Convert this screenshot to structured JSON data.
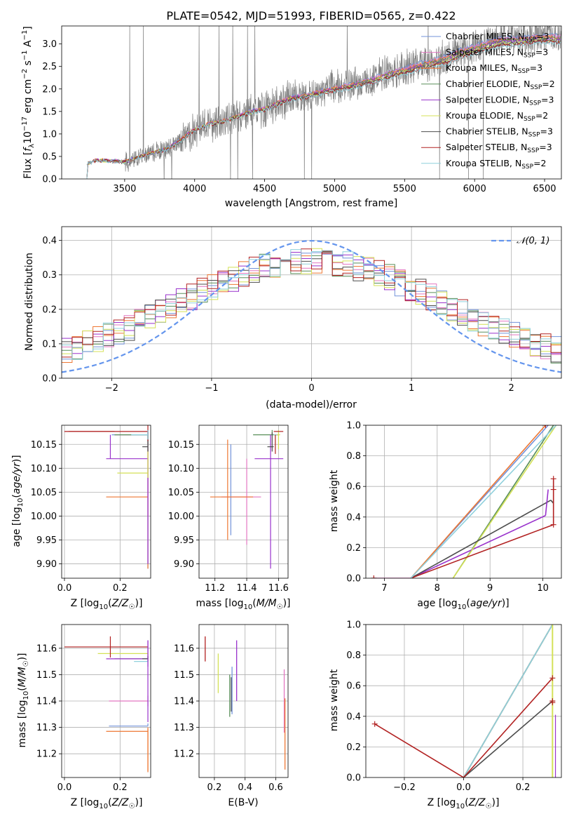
{
  "figure": {
    "title": "PLATE=0542, MJD=51993, FIBERID=0565, z=0.422"
  },
  "colors": {
    "data": "#808080",
    "normal": "#6495ed"
  },
  "models": [
    {
      "name": "Chabrier MILES, N_SSP=3",
      "base": "Chabrier MILES, N",
      "nssp": "3",
      "color": "#7393d9"
    },
    {
      "name": "Salpeter MILES, N_SSP=3",
      "base": "Salpeter MILES, N",
      "nssp": "3",
      "color": "#e377c2"
    },
    {
      "name": "Kroupa MILES, N_SSP=3",
      "base": "Kroupa MILES, N",
      "nssp": "3",
      "color": "#ee7733"
    },
    {
      "name": "Chabrier ELODIE, N_SSP=2",
      "base": "Chabrier ELODIE, N",
      "nssp": "2",
      "color": "#5a8f5a"
    },
    {
      "name": "Salpeter ELODIE, N_SSP=3",
      "base": "Salpeter ELODIE, N",
      "nssp": "3",
      "color": "#9932cc"
    },
    {
      "name": "Kroupa ELODIE, N_SSP=2",
      "base": "Kroupa ELODIE, N",
      "nssp": "2",
      "color": "#d4e157"
    },
    {
      "name": "Chabrier STELIB, N_SSP=3",
      "base": "Chabrier STELIB, N",
      "nssp": "3",
      "color": "#4d4d4d"
    },
    {
      "name": "Salpeter STELIB, N_SSP=3",
      "base": "Salpeter STELIB, N",
      "nssp": "3",
      "color": "#b22222"
    },
    {
      "name": "Kroupa STELIB, N_SSP=2",
      "base": "Kroupa STELIB, N",
      "nssp": "2",
      "color": "#8fd0dc"
    }
  ],
  "chart_data": [
    {
      "id": "spectrum",
      "type": "line",
      "title": "PLATE=0542, MJD=51993, FIBERID=0565, z=0.422",
      "xlabel": "wavelength [Angstrom, rest frame]",
      "ylabel": "Flux [f_λ 10^-17 erg cm^-2 s^-1 A^-1]",
      "xlim": [
        3050,
        6620
      ],
      "ylim": [
        0,
        3.4
      ],
      "xticks": [
        3500,
        4000,
        4500,
        5000,
        5500,
        6000,
        6500
      ],
      "yticks": [
        0.0,
        0.5,
        1.0,
        1.5,
        2.0,
        2.5,
        3.0
      ],
      "grid": false,
      "legend": "top-right",
      "x": [
        3230,
        3300,
        3400,
        3500,
        3600,
        3700,
        3800,
        3900,
        4000,
        4100,
        4200,
        4300,
        4400,
        4500,
        4600,
        4700,
        4800,
        4900,
        5000,
        5100,
        5200,
        5300,
        5400,
        5500,
        5600,
        5700,
        5800,
        5900,
        6000,
        6100,
        6200,
        6300,
        6400,
        6450
      ],
      "series": [
        {
          "name": "data",
          "values": [
            0.33,
            0.42,
            0.4,
            0.38,
            0.48,
            0.58,
            0.65,
            0.85,
            1.1,
            1.22,
            1.28,
            1.38,
            1.5,
            1.55,
            1.7,
            1.82,
            1.85,
            1.95,
            2.02,
            2.08,
            2.15,
            2.25,
            2.38,
            2.45,
            2.55,
            2.62,
            2.7,
            2.85,
            2.95,
            3.05,
            3.12,
            3.12,
            3.15,
            3.18
          ]
        },
        {
          "name": "Chabrier MILES, N_SSP=3",
          "values": [
            0.34,
            0.43,
            0.41,
            0.39,
            0.49,
            0.6,
            0.68,
            0.88,
            1.12,
            1.24,
            1.3,
            1.4,
            1.52,
            1.58,
            1.72,
            1.84,
            1.88,
            1.97,
            2.04,
            2.1,
            2.18,
            2.28,
            2.4,
            2.47,
            2.58,
            2.65,
            2.75,
            2.88,
            2.98,
            3.08,
            3.15,
            3.15,
            3.18,
            3.2
          ]
        },
        {
          "name": "Salpeter STELIB, N_SSP=3",
          "values": [
            0.33,
            0.41,
            0.39,
            0.37,
            0.47,
            0.57,
            0.64,
            0.84,
            1.08,
            1.2,
            1.25,
            1.35,
            1.46,
            1.52,
            1.65,
            1.76,
            1.8,
            1.88,
            1.95,
            2.0,
            2.06,
            2.15,
            2.25,
            2.32,
            2.42,
            2.48,
            2.55,
            2.68,
            2.78,
            2.88,
            2.95,
            2.96,
            3.0,
            3.02
          ]
        }
      ]
    },
    {
      "id": "residuals",
      "type": "line",
      "xlabel": "(data-model)/error",
      "ylabel": "Normed distribution",
      "xlim": [
        -2.5,
        2.5
      ],
      "ylim": [
        0,
        0.44
      ],
      "xticks": [
        -2,
        -1,
        0,
        1,
        2
      ],
      "yticks": [
        0.0,
        0.1,
        0.2,
        0.3,
        0.4
      ],
      "grid": true,
      "legend": "top-right",
      "series": [
        {
          "name": "N(0,1)",
          "label": "𝒩(0, 1)",
          "style": "dashed"
        }
      ]
    },
    {
      "id": "age_vs_Z",
      "type": "scatter",
      "xlabel": "Z [log10(Z/Z☉)]",
      "ylabel": "age [log10(age/yr)]",
      "xlim": [
        -0.01,
        0.31
      ],
      "ylim": [
        9.87,
        10.19
      ],
      "xticks": [
        0.0,
        0.2
      ],
      "yticks": [
        9.9,
        9.95,
        10.0,
        10.05,
        10.1,
        10.15
      ],
      "grid": true
    },
    {
      "id": "age_vs_mass",
      "type": "scatter",
      "xlabel": "mass [log10(M/M☉)]",
      "ylabel": "",
      "xlim": [
        11.1,
        11.66
      ],
      "ylim": [
        9.87,
        10.19
      ],
      "xticks": [
        11.2,
        11.4,
        11.6
      ],
      "yticks": [
        9.9,
        9.95,
        10.0,
        10.05,
        10.1,
        10.15
      ],
      "grid": true
    },
    {
      "id": "mass_weight_vs_age",
      "type": "line",
      "xlabel": "age [log10(age/yr)]",
      "ylabel": "mass weight",
      "xlim": [
        6.65,
        10.35
      ],
      "ylim": [
        0,
        1.0
      ],
      "xticks": [
        7,
        8,
        9,
        10
      ],
      "yticks": [
        0.0,
        0.2,
        0.4,
        0.6,
        0.8,
        1.0
      ],
      "grid": true
    },
    {
      "id": "mass_vs_Z",
      "type": "scatter",
      "xlabel": "Z [log10(Z/Z☉)]",
      "ylabel": "mass [log10(M/M☉)]",
      "xlim": [
        -0.01,
        0.31
      ],
      "ylim": [
        11.11,
        11.69
      ],
      "xticks": [
        0.0,
        0.2
      ],
      "yticks": [
        11.2,
        11.3,
        11.4,
        11.5,
        11.6
      ],
      "grid": true
    },
    {
      "id": "mass_vs_EBV",
      "type": "scatter",
      "xlabel": "E(B-V)",
      "ylabel": "",
      "xlim": [
        0.1,
        0.68
      ],
      "ylim": [
        11.11,
        11.69
      ],
      "xticks": [
        0.2,
        0.4,
        0.6
      ],
      "yticks": [
        11.2,
        11.3,
        11.4,
        11.5,
        11.6
      ],
      "grid": true
    },
    {
      "id": "mass_weight_vs_Z",
      "type": "line",
      "xlabel": "Z [log10(Z/Z☉)]",
      "ylabel": "mass weight",
      "xlim": [
        -0.33,
        0.33
      ],
      "ylim": [
        0,
        1.0
      ],
      "xticks": [
        -0.2,
        0.0,
        0.2
      ],
      "yticks": [
        0.0,
        0.2,
        0.4,
        0.6,
        0.8,
        1.0
      ],
      "grid": true
    }
  ]
}
